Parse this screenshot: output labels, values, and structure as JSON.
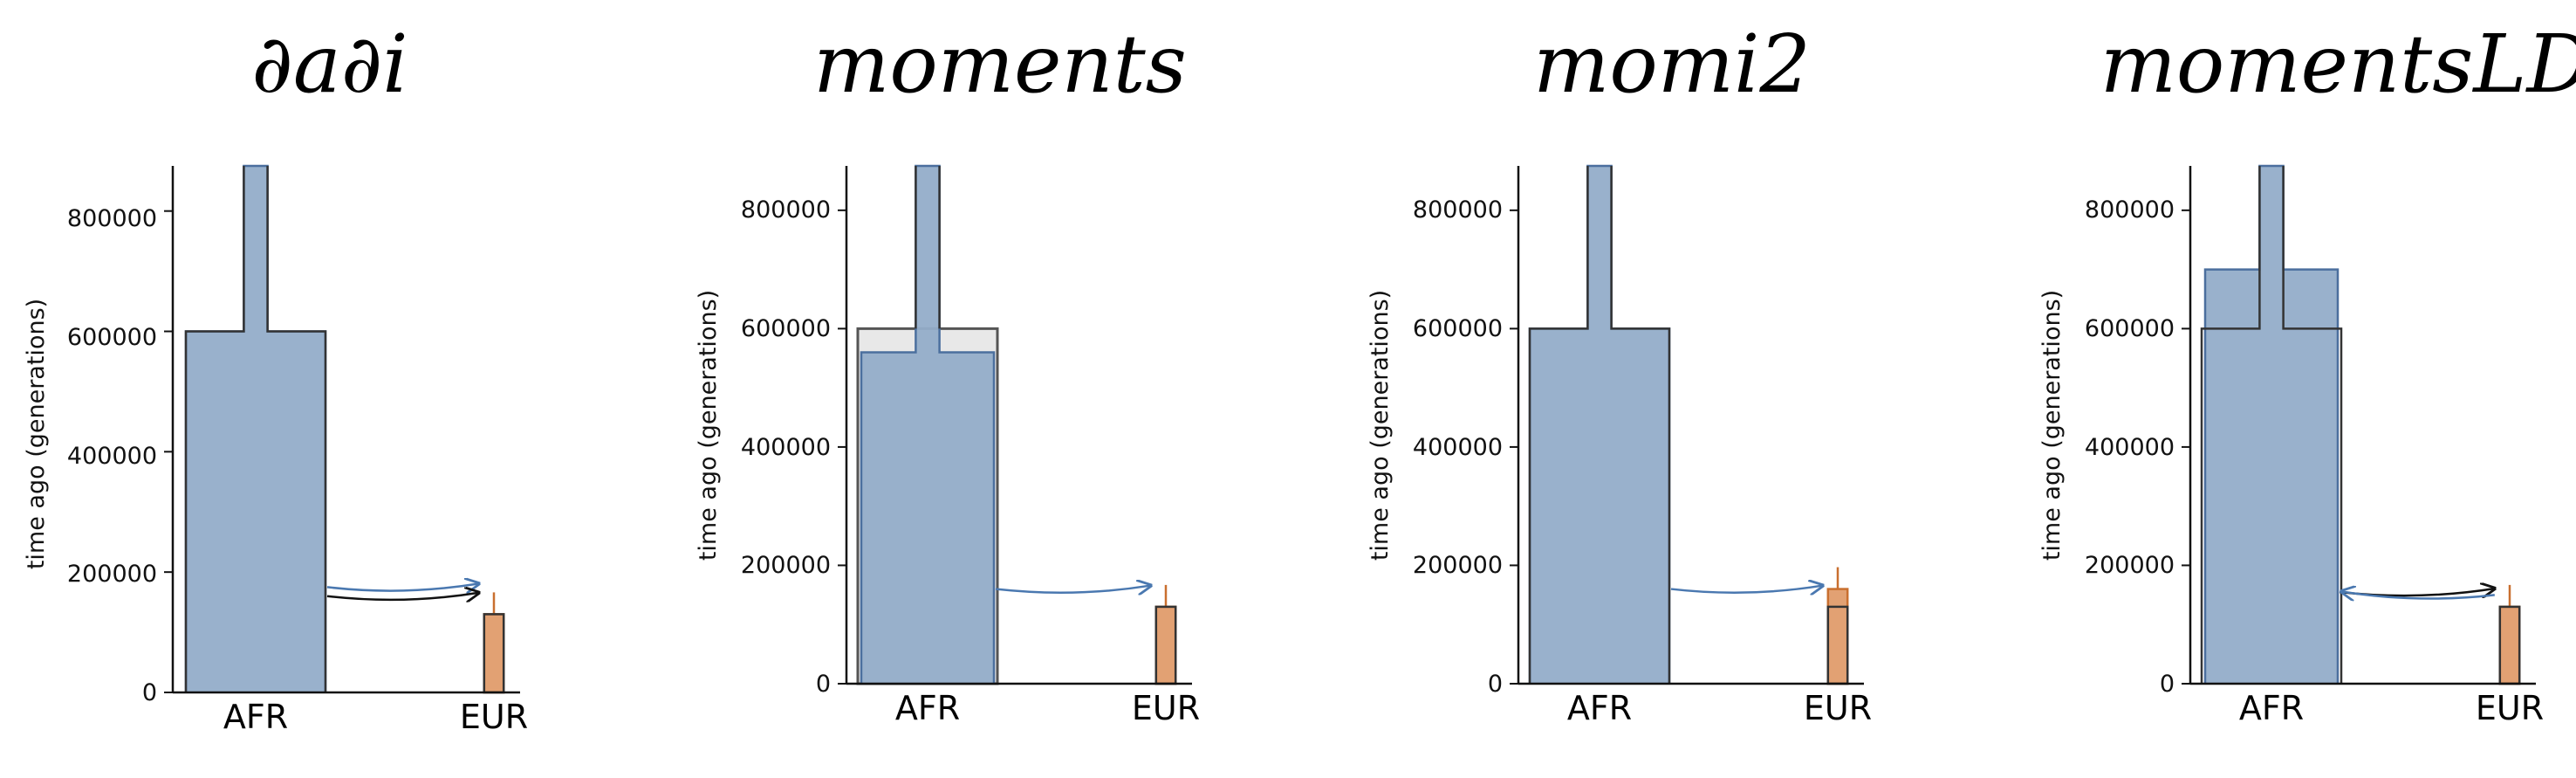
{
  "colors": {
    "afr_fill": "#93adc9",
    "afr_edge": "#4b6f9e",
    "eur_fill": "#e2a173",
    "eur_edge": "#c96f2f",
    "arrow_blue": "#4a78b0",
    "arrow_black": "#111111",
    "ancestral_gray": "#e8e8e8"
  },
  "chart_data": [
    {
      "type": "demography",
      "title": "∂a∂i",
      "ylabel": "time ago (generations)",
      "yticks": [
        0,
        200000,
        400000,
        600000,
        800000
      ],
      "ylim": [
        0,
        875000
      ],
      "categories": [
        "AFR",
        "EUR"
      ],
      "afr_split_time": 600000,
      "ancestral_width_ratio": 0.17,
      "afr_width_ratio": 1.0,
      "eur_split_time": 130000,
      "eur_width_ratio": 0.14,
      "migration": [
        {
          "direction": "AFR→EUR",
          "color": "blue",
          "y": 175000
        },
        {
          "direction": "AFR→EUR",
          "color": "black",
          "y": 160000
        }
      ],
      "overlay": "black-outline"
    },
    {
      "type": "demography",
      "title": "moments",
      "ylabel": "time ago (generations)",
      "yticks": [
        0,
        200000,
        400000,
        600000,
        800000
      ],
      "ylim": [
        0,
        875000
      ],
      "categories": [
        "AFR",
        "EUR"
      ],
      "afr_split_time": 560000,
      "ancestral_width_ratio": 0.17,
      "afr_width_ratio": 0.95,
      "outline_split_time": 600000,
      "eur_split_time": 130000,
      "eur_width_ratio": 0.14,
      "migration": [
        {
          "direction": "AFR→EUR",
          "color": "blue",
          "y": 160000
        }
      ],
      "overlay": "gray-ancestral"
    },
    {
      "type": "demography",
      "title": "momi2",
      "ylabel": "time ago (generations)",
      "yticks": [
        0,
        200000,
        400000,
        600000,
        800000
      ],
      "ylim": [
        0,
        875000
      ],
      "categories": [
        "AFR",
        "EUR"
      ],
      "afr_split_time": 600000,
      "ancestral_width_ratio": 0.17,
      "afr_width_ratio": 1.0,
      "eur_split_time": 160000,
      "eur_width_ratio": 0.14,
      "migration": [
        {
          "direction": "AFR→EUR",
          "color": "blue",
          "y": 160000
        }
      ],
      "overlay": "black-outline"
    },
    {
      "type": "demography",
      "title": "momentsLD",
      "ylabel": "time ago (generations)",
      "yticks": [
        0,
        200000,
        400000,
        600000,
        800000
      ],
      "ylim": [
        0,
        875000
      ],
      "categories": [
        "AFR",
        "EUR"
      ],
      "afr_split_time": 700000,
      "ancestral_width_ratio": 0.17,
      "afr_width_ratio": 0.95,
      "outline_split_time": 600000,
      "eur_split_time": 130000,
      "eur_width_ratio": 0.14,
      "migration": [
        {
          "direction": "AFR→EUR",
          "color": "black",
          "y": 155000
        },
        {
          "direction": "EUR→AFR",
          "color": "blue",
          "y": 150000
        }
      ],
      "overlay": "black-outline"
    }
  ]
}
